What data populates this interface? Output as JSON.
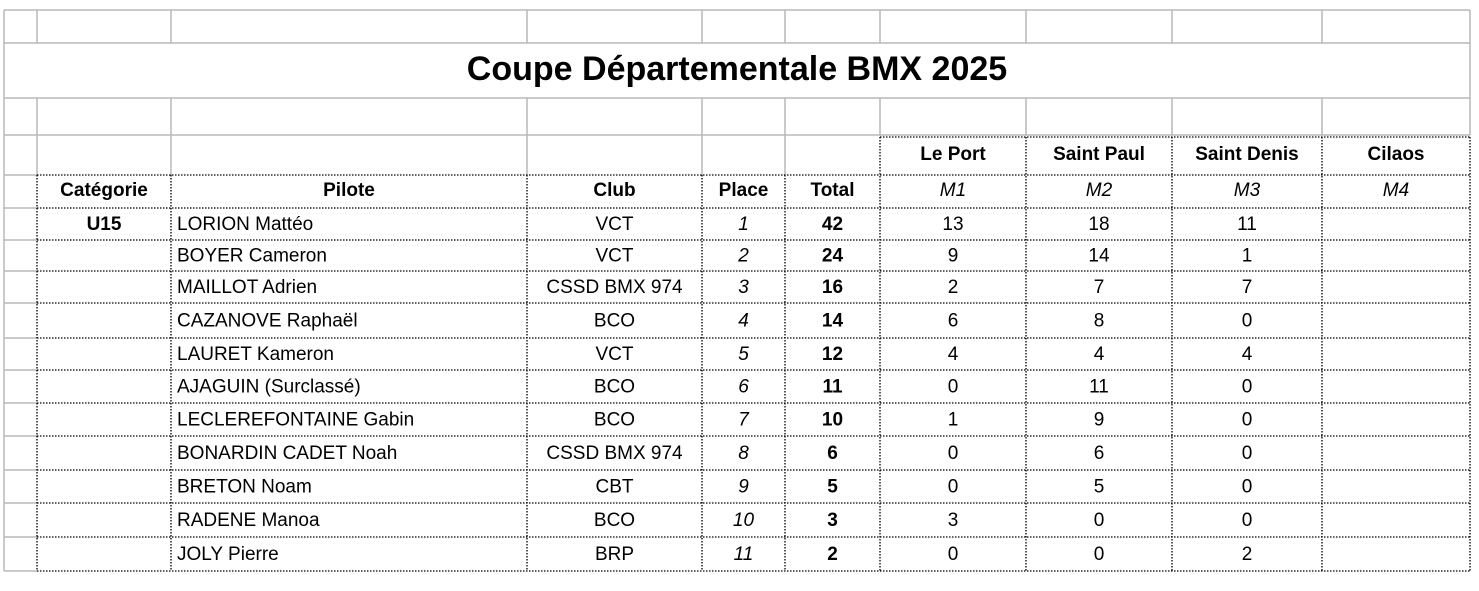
{
  "header": {
    "title": "Coupe Départementale BMX 2025"
  },
  "table": {
    "venues": [
      "Le Port",
      "Saint Paul",
      "Saint Denis",
      "Cilaos"
    ],
    "columns": [
      "Catégorie",
      "Pilote",
      "Club",
      "Place",
      "Total",
      "M1",
      "M2",
      "M3",
      "M4"
    ],
    "rows": [
      {
        "category": "U15",
        "pilot": "LORION Mattéo",
        "club": "VCT",
        "place": 1,
        "total": 42,
        "scores": [
          13,
          18,
          11
        ]
      },
      {
        "pilot": "BOYER Cameron",
        "club": "VCT",
        "place": 2,
        "total": 24,
        "scores": [
          9,
          14,
          1
        ]
      },
      {
        "pilot": "MAILLOT Adrien",
        "club": "CSSD BMX 974",
        "place": 3,
        "total": 16,
        "scores": [
          2,
          7,
          7
        ]
      },
      {
        "pilot": "CAZANOVE Raphaël",
        "club": "BCO",
        "place": 4,
        "total": 14,
        "scores": [
          6,
          8,
          0
        ]
      },
      {
        "pilot": "LAURET Kameron",
        "club": "VCT",
        "place": 5,
        "total": 12,
        "scores": [
          4,
          4,
          4
        ]
      },
      {
        "pilot": "AJAGUIN (Surclassé)",
        "club": "BCO",
        "place": 6,
        "total": 11,
        "scores": [
          0,
          11,
          0
        ]
      },
      {
        "pilot": "LECLEREFONTAINE Gabin",
        "club": "BCO",
        "place": 7,
        "total": 10,
        "scores": [
          1,
          9,
          0
        ]
      },
      {
        "pilot": "BONARDIN CADET Noah",
        "club": "CSSD BMX 974",
        "place": 8,
        "total": 6,
        "scores": [
          0,
          6,
          0
        ]
      },
      {
        "pilot": "BRETON Noam",
        "club": "CBT",
        "place": 9,
        "total": 5,
        "scores": [
          0,
          5,
          0
        ]
      },
      {
        "pilot": "RADENE Manoa",
        "club": "BCO",
        "place": 10,
        "total": 3,
        "scores": [
          3,
          0,
          0
        ]
      },
      {
        "pilot": "JOLY Pierre",
        "club": "BRP",
        "place": 11,
        "total": 2,
        "scores": [
          0,
          0,
          2
        ]
      }
    ]
  }
}
